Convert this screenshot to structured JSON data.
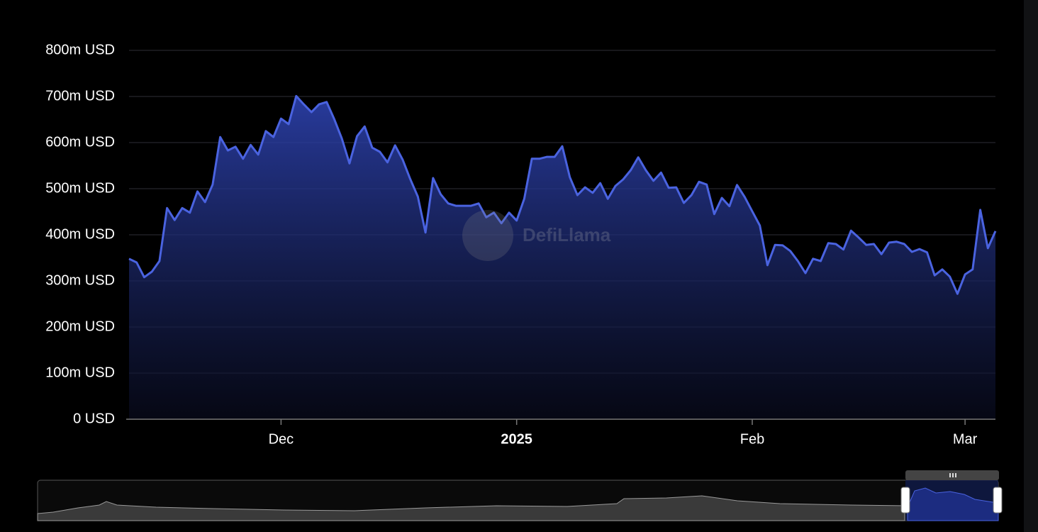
{
  "chart_data": {
    "type": "area",
    "watermark": "DefiLlama",
    "color": "#4a63e0",
    "grid": true,
    "ylim": [
      0,
      800
    ],
    "yticks": [
      {
        "value": 0,
        "label": "0 USD"
      },
      {
        "value": 100,
        "label": "100m USD"
      },
      {
        "value": 200,
        "label": "200m USD"
      },
      {
        "value": 300,
        "label": "300m USD"
      },
      {
        "value": 400,
        "label": "400m USD"
      },
      {
        "value": 500,
        "label": "500m USD"
      },
      {
        "value": 600,
        "label": "600m USD"
      },
      {
        "value": 700,
        "label": "700m USD"
      },
      {
        "value": 800,
        "label": "800m USD"
      }
    ],
    "xlim": [
      0,
      114
    ],
    "xticks": [
      {
        "value": 20,
        "label": "Dec"
      },
      {
        "value": 51,
        "label": "2025"
      },
      {
        "value": 82,
        "label": "Feb"
      },
      {
        "value": 110,
        "label": "Mar"
      }
    ],
    "values": [
      348,
      340,
      308,
      320,
      343,
      458,
      432,
      458,
      448,
      494,
      471,
      509,
      612,
      583,
      591,
      565,
      595,
      574,
      625,
      612,
      652,
      640,
      701,
      683,
      666,
      683,
      688,
      651,
      609,
      555,
      614,
      635,
      589,
      580,
      557,
      594,
      563,
      521,
      483,
      405,
      523,
      488,
      468,
      463,
      463,
      463,
      468,
      438,
      448,
      425,
      448,
      431,
      478,
      565,
      565,
      569,
      569,
      592,
      525,
      486,
      503,
      491,
      512,
      478,
      506,
      520,
      540,
      568,
      540,
      517,
      535,
      502,
      503,
      469,
      486,
      515,
      509,
      445,
      480,
      462,
      508,
      482,
      451,
      420,
      334,
      378,
      377,
      365,
      343,
      317,
      348,
      343,
      382,
      380,
      368,
      409,
      394,
      378,
      380,
      358,
      383,
      385,
      380,
      363,
      369,
      362,
      312,
      325,
      309,
      272,
      314,
      325,
      454,
      371,
      408
    ]
  }
}
